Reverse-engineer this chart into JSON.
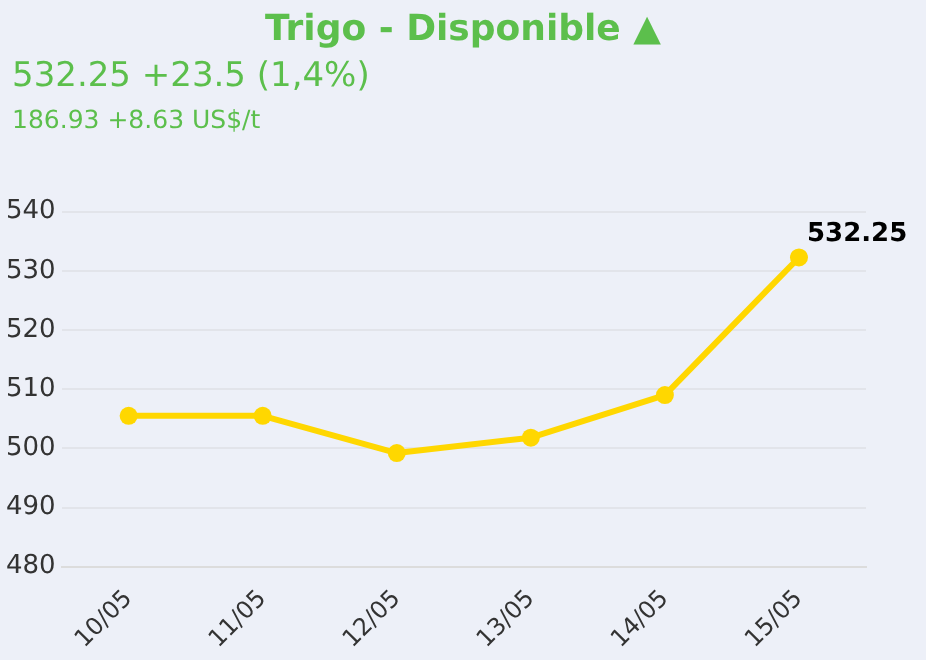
{
  "chart_data": {
    "type": "line",
    "title": "Trigo - Disponible ▲",
    "subtitle": "532.25 +23.5 (1,4%)",
    "annotations": [
      "186.93 +8.63 US$/t"
    ],
    "categories": [
      "10/05",
      "11/05",
      "12/05",
      "13/05",
      "14/05",
      "15/05"
    ],
    "series": [
      {
        "color": "#ffd700",
        "values": [
          505.5,
          505.5,
          499.2,
          501.8,
          509,
          532.25
        ],
        "value_labels": [
          null,
          null,
          null,
          null,
          null,
          "532.25"
        ]
      }
    ],
    "ylim": [
      480,
      540
    ],
    "yticks": [
      480,
      490,
      500,
      510,
      520,
      530,
      540
    ],
    "grid": "y",
    "legend": false,
    "marker": "circle",
    "line_style": "solid"
  }
}
